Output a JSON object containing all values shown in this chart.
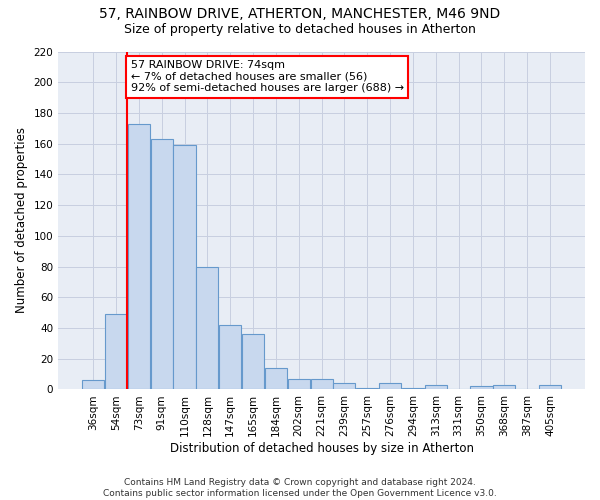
{
  "title1": "57, RAINBOW DRIVE, ATHERTON, MANCHESTER, M46 9ND",
  "title2": "Size of property relative to detached houses in Atherton",
  "xlabel": "Distribution of detached houses by size in Atherton",
  "ylabel": "Number of detached properties",
  "footnote": "Contains HM Land Registry data © Crown copyright and database right 2024.\nContains public sector information licensed under the Open Government Licence v3.0.",
  "bin_labels": [
    "36sqm",
    "54sqm",
    "73sqm",
    "91sqm",
    "110sqm",
    "128sqm",
    "147sqm",
    "165sqm",
    "184sqm",
    "202sqm",
    "221sqm",
    "239sqm",
    "257sqm",
    "276sqm",
    "294sqm",
    "313sqm",
    "331sqm",
    "350sqm",
    "368sqm",
    "387sqm",
    "405sqm"
  ],
  "bar_values": [
    6,
    49,
    173,
    163,
    159,
    80,
    42,
    36,
    14,
    7,
    7,
    4,
    1,
    4,
    1,
    3,
    0,
    2,
    3,
    0,
    3
  ],
  "bar_color": "#c8d8ee",
  "bar_edge_color": "#6699cc",
  "highlight_line_bin": 2,
  "annotation_text": "57 RAINBOW DRIVE: 74sqm\n← 7% of detached houses are smaller (56)\n92% of semi-detached houses are larger (688) →",
  "annotation_box_color": "white",
  "annotation_box_edge_color": "red",
  "vline_color": "red",
  "ylim": [
    0,
    220
  ],
  "yticks": [
    0,
    20,
    40,
    60,
    80,
    100,
    120,
    140,
    160,
    180,
    200,
    220
  ],
  "grid_color": "#c8cfe0",
  "background_color": "#e8edf5",
  "title1_fontsize": 10,
  "title2_fontsize": 9,
  "axis_label_fontsize": 8.5,
  "tick_fontsize": 7.5,
  "annotation_fontsize": 8,
  "footnote_fontsize": 6.5
}
